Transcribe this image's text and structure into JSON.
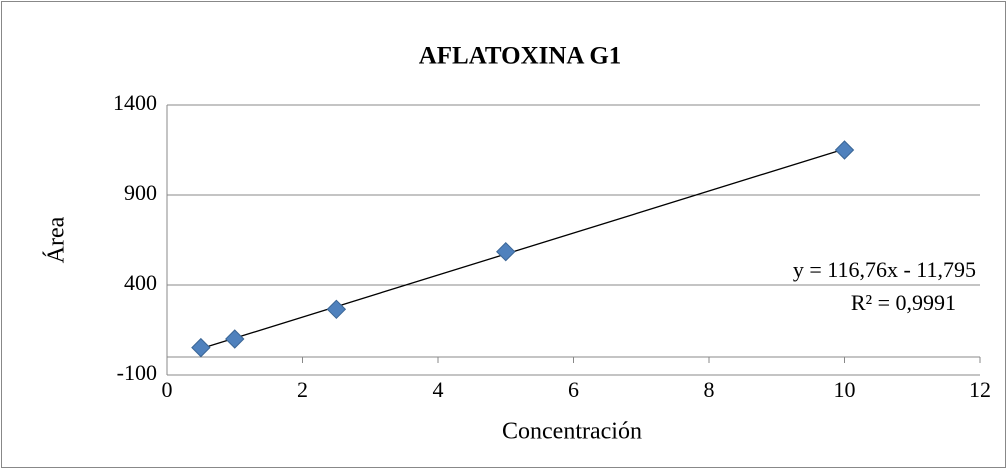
{
  "chart_data": {
    "type": "scatter",
    "title": "AFLATOXINA G1",
    "x_label": "Concentración",
    "y_label": "Área",
    "series": [
      {
        "name": "Área",
        "color": "#4f81bd",
        "x": [
          0.5,
          1,
          2.5,
          5,
          10
        ],
        "values": [
          52,
          100,
          265,
          585,
          1150
        ]
      }
    ],
    "trendline": {
      "slope": 116.76,
      "intercept": -11.795,
      "equation": "y = 116,76x - 11,795",
      "r2": "R² = 0,9991"
    },
    "xlim": [
      0,
      12
    ],
    "xticks": [
      0,
      2,
      4,
      6,
      8,
      10,
      12
    ],
    "ylim": [
      -100,
      1400
    ],
    "yticks": [
      -100,
      400,
      900,
      1400
    ],
    "grid": true
  }
}
